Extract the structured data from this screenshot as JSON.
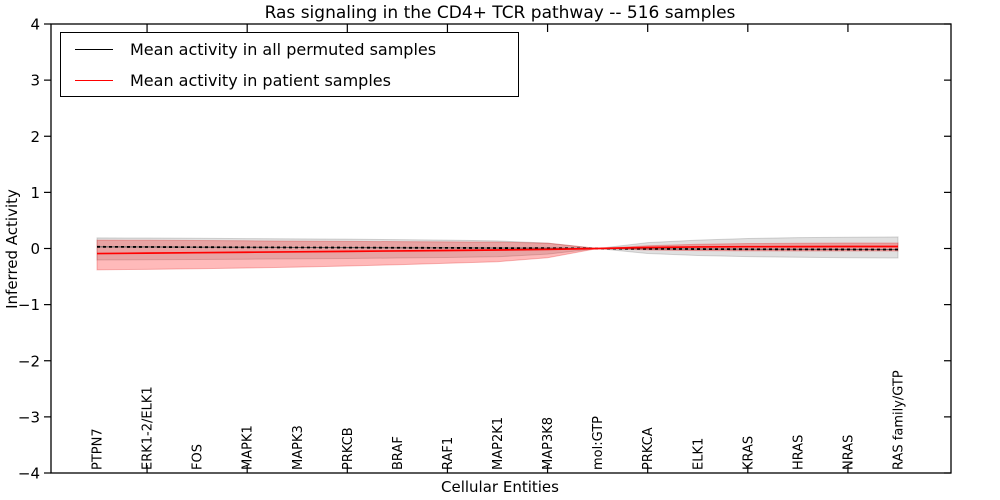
{
  "figure": {
    "background": "#ffffff"
  },
  "chart_data": {
    "type": "line",
    "title": "Ras signaling in the CD4+ TCR pathway -- 516 samples",
    "xlabel": "Cellular Entities",
    "ylabel": "Inferred Activity",
    "ylim": [
      -4,
      4
    ],
    "yticks": [
      -4,
      -3,
      -2,
      -1,
      0,
      1,
      2,
      3,
      4
    ],
    "grid": false,
    "legend_position": "upper left",
    "categories": [
      "PTPN7",
      "ERK1-2/ELK1",
      "FOS",
      "MAPK1",
      "MAPK3",
      "PRKCB",
      "BRAF",
      "RAF1",
      "MAP2K1",
      "MAP3K8",
      "mol:GTP",
      "PRKCA",
      "ELK1",
      "KRAS",
      "HRAS",
      "NRAS",
      "RAS family/GTP"
    ],
    "series": [
      {
        "name": "Mean activity in all permuted samples",
        "color": "#000000",
        "line_style": "dashed",
        "band_fill": "rgba(0,0,0,0.12)",
        "band_edge": "rgba(0,0,0,0.15)",
        "values": [
          0.03,
          0.027,
          0.024,
          0.021,
          0.018,
          0.016,
          0.013,
          0.011,
          0.008,
          0.005,
          0.0,
          -0.006,
          -0.01,
          -0.013,
          -0.015,
          -0.017,
          -0.018
        ],
        "band_upper": [
          0.19,
          0.186,
          0.182,
          0.177,
          0.172,
          0.166,
          0.158,
          0.149,
          0.136,
          0.095,
          0.0,
          0.105,
          0.15,
          0.178,
          0.193,
          0.201,
          0.206
        ],
        "band_lower": [
          -0.205,
          -0.201,
          -0.196,
          -0.191,
          -0.185,
          -0.178,
          -0.17,
          -0.16,
          -0.148,
          -0.1,
          0.0,
          -0.09,
          -0.124,
          -0.145,
          -0.157,
          -0.164,
          -0.17
        ]
      },
      {
        "name": "Mean activity in patient samples",
        "color": "#ff0000",
        "line_style": "solid",
        "band_fill": "rgba(255,0,0,0.27)",
        "band_edge": "rgba(220,0,0,0.25)",
        "values": [
          -0.09,
          -0.083,
          -0.075,
          -0.067,
          -0.059,
          -0.051,
          -0.043,
          -0.035,
          -0.027,
          -0.015,
          0.0,
          0.018,
          0.028,
          0.032,
          0.034,
          0.035,
          0.036
        ],
        "band_upper": [
          0.15,
          0.146,
          0.142,
          0.137,
          0.132,
          0.127,
          0.122,
          0.118,
          0.113,
          0.095,
          0.0,
          0.05,
          0.075,
          0.088,
          0.094,
          0.097,
          0.098
        ],
        "band_lower": [
          -0.38,
          -0.371,
          -0.36,
          -0.347,
          -0.331,
          -0.312,
          -0.289,
          -0.262,
          -0.235,
          -0.165,
          0.0,
          -0.026,
          -0.038,
          -0.042,
          -0.044,
          -0.045,
          -0.045
        ]
      }
    ]
  }
}
